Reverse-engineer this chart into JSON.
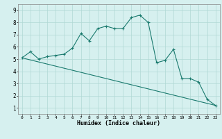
{
  "title": "",
  "xlabel": "Humidex (Indice chaleur)",
  "background_color": "#d6f0ef",
  "line_color": "#1a7a6e",
  "grid_color": "#b0d8d4",
  "xlim": [
    -0.5,
    23.5
  ],
  "ylim": [
    0.5,
    9.5
  ],
  "xticks": [
    0,
    1,
    2,
    3,
    4,
    5,
    6,
    7,
    8,
    9,
    10,
    11,
    12,
    13,
    14,
    15,
    16,
    17,
    18,
    19,
    20,
    21,
    22,
    23
  ],
  "yticks": [
    1,
    2,
    3,
    4,
    5,
    6,
    7,
    8,
    9
  ],
  "curve1_x": [
    0,
    1,
    2,
    3,
    4,
    5,
    6,
    7,
    8,
    9,
    10,
    11,
    12,
    13,
    14,
    15,
    16,
    17,
    18,
    19,
    20,
    21,
    22,
    23
  ],
  "curve1_y": [
    5.1,
    5.6,
    5.0,
    5.2,
    5.3,
    5.4,
    5.9,
    7.1,
    6.5,
    7.5,
    7.7,
    7.5,
    7.5,
    8.4,
    8.6,
    8.0,
    4.7,
    4.9,
    5.8,
    3.4,
    3.4,
    3.1,
    1.7,
    1.2
  ],
  "curve2_x": [
    0,
    23
  ],
  "curve2_y": [
    5.1,
    1.2
  ]
}
